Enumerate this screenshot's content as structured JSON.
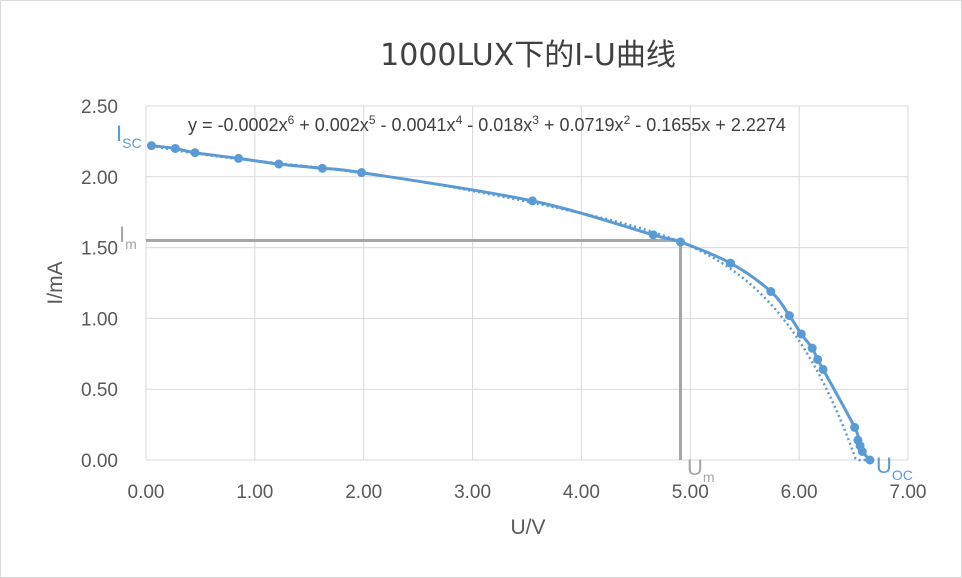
{
  "chart_data": {
    "type": "scatter",
    "title": "1000LUX下的I-U曲线",
    "xlabel": "U/V",
    "ylabel": "I/mA",
    "xlim": [
      0,
      7
    ],
    "ylim": [
      0,
      2.5
    ],
    "x_ticks": [
      "0.00",
      "1.00",
      "2.00",
      "3.00",
      "4.00",
      "5.00",
      "6.00",
      "7.00"
    ],
    "y_ticks": [
      "0.00",
      "0.50",
      "1.00",
      "1.50",
      "2.00",
      "2.50"
    ],
    "grid": true,
    "series": [
      {
        "x": [
          0.05,
          0.27,
          0.45,
          0.85,
          1.22,
          1.62,
          1.98,
          3.55,
          4.66,
          4.91,
          5.37,
          5.74,
          5.91,
          6.02,
          6.12,
          6.17,
          6.22,
          6.51,
          6.54,
          6.56,
          6.58,
          6.65
        ],
        "y": [
          2.22,
          2.2,
          2.17,
          2.13,
          2.09,
          2.06,
          2.03,
          1.83,
          1.59,
          1.54,
          1.39,
          1.19,
          1.02,
          0.89,
          0.79,
          0.71,
          0.64,
          0.23,
          0.14,
          0.1,
          0.06,
          0.0
        ],
        "color": "#5b9bd5"
      }
    ],
    "trendline": {
      "type": "polynomial",
      "equation_text": {
        "main": "y = -0.0002x",
        "e1": "6",
        "t1": " + 0.002x",
        "e2": "5",
        "t2": " - 0.0041x",
        "e3": "4",
        "t3": " - 0.018x",
        "e4": "3",
        "t4": " + 0.0719x",
        "e5": "2",
        "t5": " - 0.1655x + 2.2274"
      },
      "coefficients_high_to_low": [
        -0.0002,
        0.002,
        -0.0041,
        -0.018,
        0.0719,
        -0.1655,
        2.2274
      ],
      "color": "#5b9bd5"
    },
    "max_power_point": {
      "U": 4.91,
      "I": 1.55,
      "color": "#a6a6a6"
    },
    "annotations": {
      "isc": {
        "base": "I",
        "sub": "SC"
      },
      "im": {
        "base": "I",
        "sub": "m"
      },
      "um": {
        "base": "U",
        "sub": "m"
      },
      "uoc": {
        "base": "U",
        "sub": "OC"
      }
    }
  }
}
